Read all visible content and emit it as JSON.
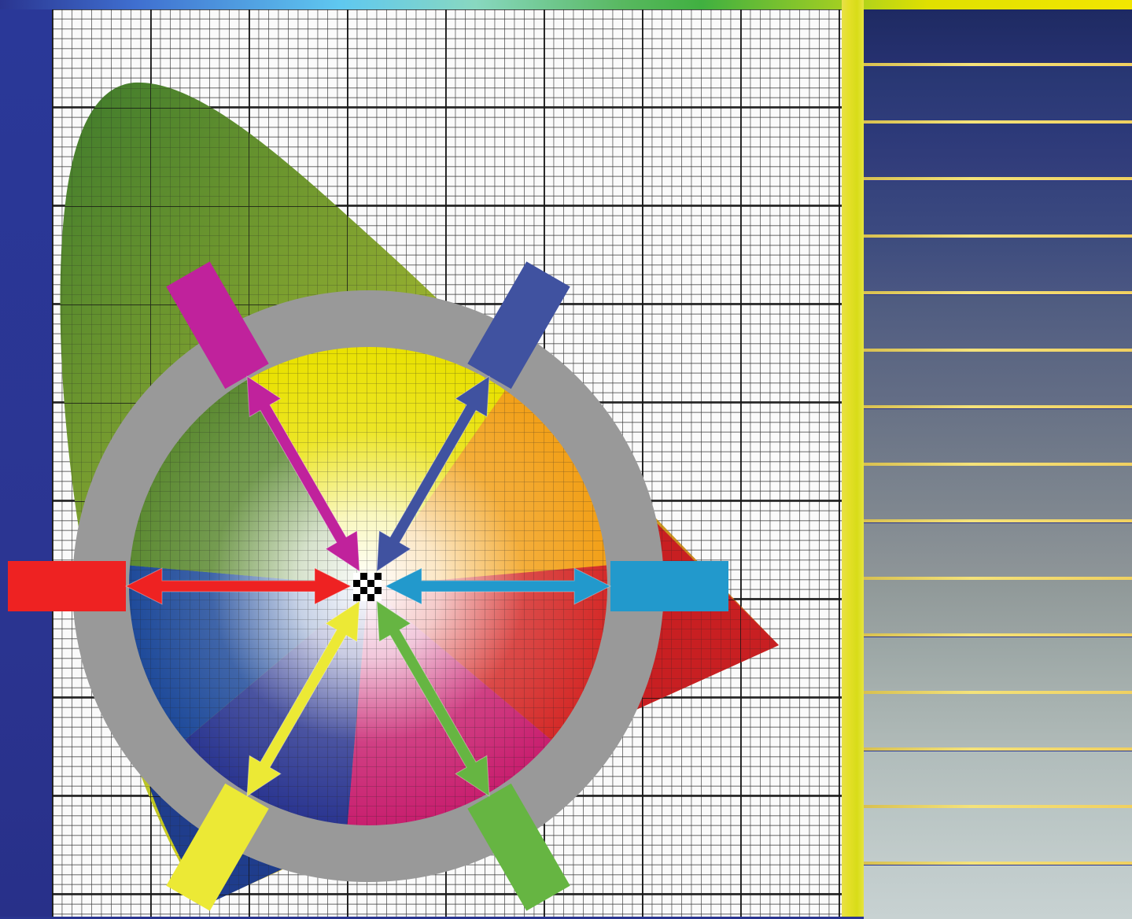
{
  "colors": {
    "background_blue": "#2a3590",
    "grid_panel": "#fafafa",
    "divider_yellow": "#e4e02a",
    "ring_gray": "#999999",
    "white_point": "#000000",
    "wheel_segments": [
      "#e9e100",
      "#f2a018",
      "#d42a28",
      "#c81e6e",
      "#2a3590",
      "#1e4a9a",
      "#5c8a32"
    ]
  },
  "axes": [
    {
      "name": "red",
      "color": "#ee2222",
      "angle_deg": 180
    },
    {
      "name": "cyan",
      "color": "#2299cc",
      "angle_deg": 0
    },
    {
      "name": "magenta",
      "color": "#c0229c",
      "angle_deg": 120
    },
    {
      "name": "blue",
      "color": "#4052a0",
      "angle_deg": 60
    },
    {
      "name": "yellow",
      "color": "#ece935",
      "angle_deg": 240
    },
    {
      "name": "green",
      "color": "#66b542",
      "angle_deg": 300
    }
  ],
  "swatches": [
    {
      "color_top": "#1e2a62",
      "color_bottom": "#263170"
    },
    {
      "color_top": "#273672",
      "color_bottom": "#2f3c7a"
    },
    {
      "color_top": "#2b3878",
      "color_bottom": "#343f7c"
    },
    {
      "color_top": "#34427c",
      "color_bottom": "#3c4a80"
    },
    {
      "color_top": "#3d4c7e",
      "color_bottom": "#4a5682"
    },
    {
      "color_top": "#4e5b80",
      "color_bottom": "#596484"
    },
    {
      "color_top": "#5b6682",
      "color_bottom": "#646e86"
    },
    {
      "color_top": "#687286",
      "color_bottom": "#727b8a"
    },
    {
      "color_top": "#767f8c",
      "color_bottom": "#808890"
    },
    {
      "color_top": "#838b92",
      "color_bottom": "#8e9598"
    },
    {
      "color_top": "#8f9898",
      "color_bottom": "#9aa3a2"
    },
    {
      "color_top": "#9aa5a4",
      "color_bottom": "#a6b0ae"
    },
    {
      "color_top": "#a5b0ae",
      "color_bottom": "#b0bab8"
    },
    {
      "color_top": "#b0bcbb",
      "color_bottom": "#bac4c2"
    },
    {
      "color_top": "#b9c5c4",
      "color_bottom": "#c2cccb"
    },
    {
      "color_top": "#c0cbcb",
      "color_bottom": "#c8d2d2"
    }
  ]
}
